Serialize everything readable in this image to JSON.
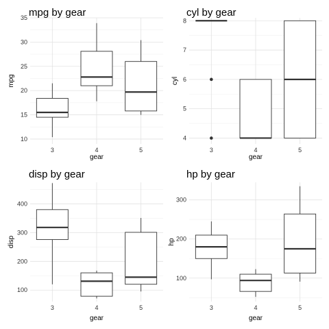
{
  "chart_data": [
    {
      "type": "boxplot",
      "title": "mpg by gear",
      "xlabel": "gear",
      "ylabel": "mpg",
      "categories": [
        "3",
        "4",
        "5"
      ],
      "ylim": [
        9,
        35
      ],
      "yticks": [
        10,
        15,
        20,
        25,
        30,
        35
      ],
      "boxes": [
        {
          "category": "3",
          "min": 10.4,
          "q1": 14.5,
          "median": 15.5,
          "q3": 18.4,
          "max": 21.5,
          "outliers": []
        },
        {
          "category": "4",
          "min": 17.8,
          "q1": 21.0,
          "median": 22.8,
          "q3": 28.1,
          "max": 33.9,
          "outliers": []
        },
        {
          "category": "5",
          "min": 15.0,
          "q1": 15.8,
          "median": 19.7,
          "q3": 26.0,
          "max": 30.4,
          "outliers": []
        }
      ]
    },
    {
      "type": "boxplot",
      "title": "cyl by gear",
      "xlabel": "gear",
      "ylabel": "cyl",
      "categories": [
        "3",
        "4",
        "5"
      ],
      "ylim": [
        3.8,
        8.1
      ],
      "yticks": [
        4,
        5,
        6,
        7,
        8
      ],
      "boxes": [
        {
          "category": "3",
          "min": 8,
          "q1": 8,
          "median": 8,
          "q3": 8,
          "max": 8,
          "outliers": [
            4,
            6
          ]
        },
        {
          "category": "4",
          "min": 4,
          "q1": 4,
          "median": 4,
          "q3": 6,
          "max": 6,
          "outliers": []
        },
        {
          "category": "5",
          "min": 4,
          "q1": 4,
          "median": 6,
          "q3": 8,
          "max": 8,
          "outliers": []
        }
      ]
    },
    {
      "type": "boxplot",
      "title": "disp by gear",
      "xlabel": "gear",
      "ylabel": "disp",
      "categories": [
        "3",
        "4",
        "5"
      ],
      "ylim": [
        60,
        475
      ],
      "yticks": [
        100,
        200,
        300,
        400
      ],
      "boxes": [
        {
          "category": "3",
          "min": 120.1,
          "q1": 275.8,
          "median": 318,
          "q3": 380,
          "max": 472,
          "outliers": []
        },
        {
          "category": "4",
          "min": 71.1,
          "q1": 78.7,
          "median": 130.9,
          "q3": 160,
          "max": 167.6,
          "outliers": []
        },
        {
          "category": "5",
          "min": 95.1,
          "q1": 120.3,
          "median": 145,
          "q3": 301,
          "max": 351,
          "outliers": []
        }
      ]
    },
    {
      "type": "boxplot",
      "title": "hp by gear",
      "xlabel": "gear",
      "ylabel": "hp",
      "categories": [
        "3",
        "4",
        "5"
      ],
      "ylim": [
        40,
        345
      ],
      "yticks": [
        100,
        200,
        300
      ],
      "boxes": [
        {
          "category": "3",
          "min": 97,
          "q1": 150,
          "median": 180,
          "q3": 210,
          "max": 245,
          "outliers": []
        },
        {
          "category": "4",
          "min": 52,
          "q1": 66,
          "median": 94,
          "q3": 110,
          "max": 123,
          "outliers": []
        },
        {
          "category": "5",
          "min": 91,
          "q1": 113,
          "median": 175,
          "q3": 264,
          "max": 335,
          "outliers": []
        }
      ]
    }
  ]
}
